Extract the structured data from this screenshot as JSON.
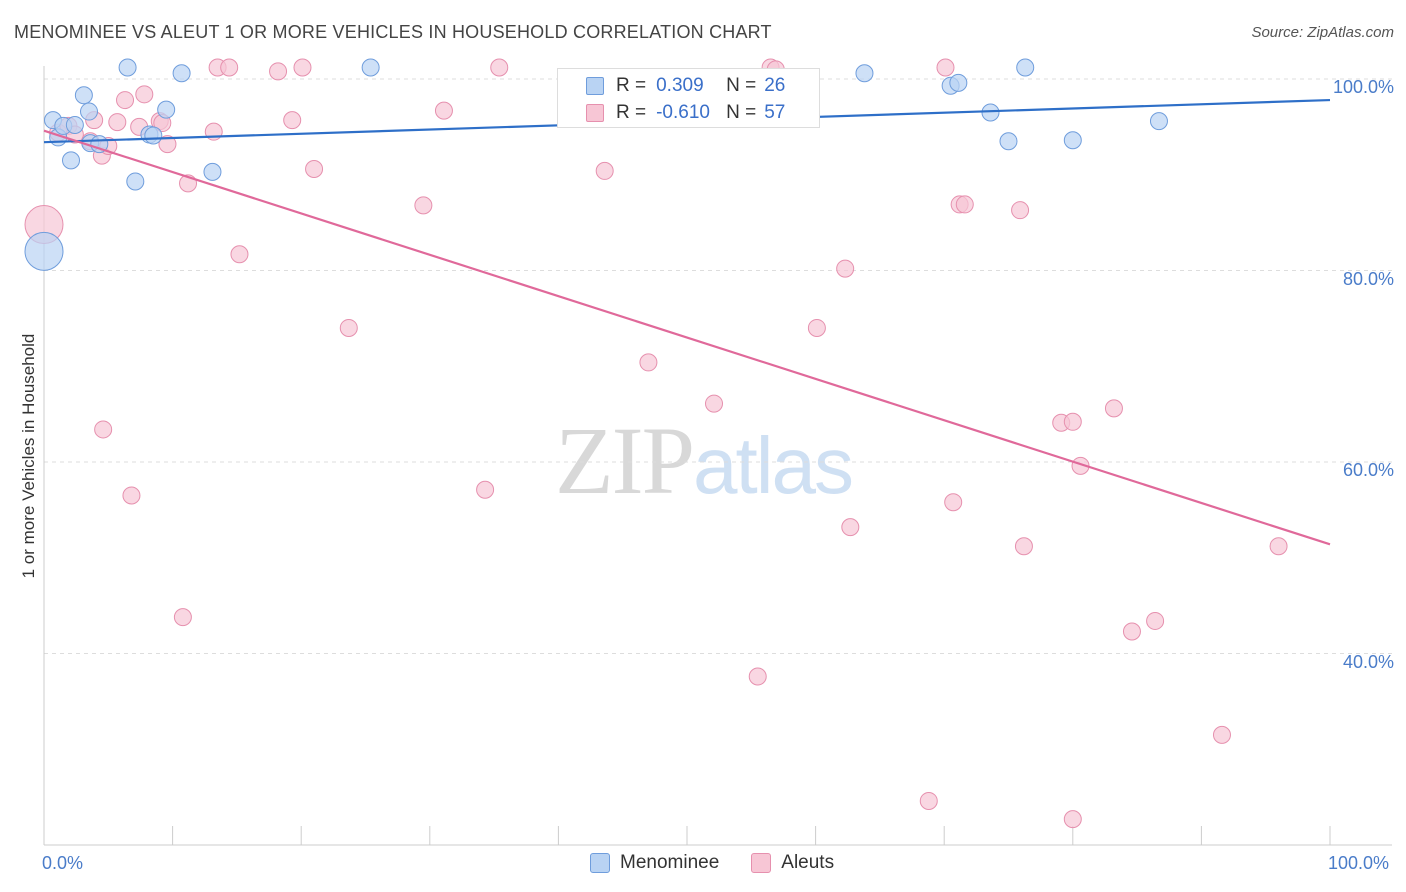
{
  "title": "MENOMINEE VS ALEUT 1 OR MORE VEHICLES IN HOUSEHOLD CORRELATION CHART",
  "source": "Source: ZipAtlas.com",
  "watermark": {
    "zip": "ZIP",
    "atlas": "atlas"
  },
  "colors": {
    "menominee_fill": "#b9d3f3",
    "menominee_stroke": "#6f9ddc",
    "menominee_line": "#2e6fc8",
    "aleut_fill": "#f7c6d5",
    "aleut_stroke": "#e690ae",
    "aleut_line": "#e0699a",
    "tick_label": "#4a7cc9",
    "grid": "#dddddd"
  },
  "legend_top": {
    "rows": [
      {
        "series": "Menominee",
        "r_label": "R =",
        "r_value": "0.309",
        "n_label": "N =",
        "n_value": "26"
      },
      {
        "series": "Aleuts",
        "r_label": "R =",
        "r_value": "-0.610",
        "n_label": "N =",
        "n_value": "57"
      }
    ]
  },
  "legend_bottom": [
    "Menominee",
    "Aleuts"
  ],
  "chart_data": {
    "type": "scatter",
    "title": "MENOMINEE VS ALEUT 1 OR MORE VEHICLES IN HOUSEHOLD CORRELATION CHART",
    "xlabel": "",
    "ylabel": "1 or more Vehicles in Household",
    "xlim": [
      0,
      100
    ],
    "ylim": [
      21,
      100
    ],
    "x_tick_labels": [
      {
        "value": 0,
        "label": "0.0%"
      },
      {
        "value": 100,
        "label": "100.0%"
      }
    ],
    "x_minor_ticks": [
      10,
      20,
      30,
      40,
      50,
      60,
      70,
      80,
      90,
      100
    ],
    "y_ticks": [
      {
        "value": 40,
        "label": "40.0%"
      },
      {
        "value": 60,
        "label": "60.0%"
      },
      {
        "value": 80,
        "label": "80.0%"
      },
      {
        "value": 100,
        "label": "100.0%"
      }
    ],
    "grid": "horizontal dashed",
    "legend_position": "top-center",
    "series": [
      {
        "name": "Menominee",
        "trend": {
          "x": [
            0,
            100
          ],
          "y": [
            93.4,
            97.8
          ]
        },
        "points": [
          {
            "x": 0.0,
            "y": 82.0,
            "big": true
          },
          {
            "x": 0.7,
            "y": 95.7
          },
          {
            "x": 1.1,
            "y": 93.9
          },
          {
            "x": 1.5,
            "y": 95.1
          },
          {
            "x": 2.1,
            "y": 91.5
          },
          {
            "x": 2.4,
            "y": 95.2
          },
          {
            "x": 3.1,
            "y": 98.3
          },
          {
            "x": 3.5,
            "y": 96.6
          },
          {
            "x": 3.6,
            "y": 93.3
          },
          {
            "x": 4.3,
            "y": 93.2
          },
          {
            "x": 7.1,
            "y": 89.3
          },
          {
            "x": 8.2,
            "y": 94.2
          },
          {
            "x": 8.5,
            "y": 94.1
          },
          {
            "x": 9.5,
            "y": 96.8
          },
          {
            "x": 10.7,
            "y": 100.6
          },
          {
            "x": 13.1,
            "y": 90.3
          },
          {
            "x": 6.5,
            "y": 101.2
          },
          {
            "x": 25.4,
            "y": 101.2
          },
          {
            "x": 63.8,
            "y": 100.6
          },
          {
            "x": 70.5,
            "y": 99.3
          },
          {
            "x": 71.1,
            "y": 99.6
          },
          {
            "x": 73.6,
            "y": 96.5
          },
          {
            "x": 75.0,
            "y": 93.5
          },
          {
            "x": 76.3,
            "y": 101.2
          },
          {
            "x": 80.0,
            "y": 93.6
          },
          {
            "x": 86.7,
            "y": 95.6
          }
        ]
      },
      {
        "name": "Aleuts",
        "trend": {
          "x": [
            0,
            100
          ],
          "y": [
            94.6,
            51.4
          ]
        },
        "points": [
          {
            "x": 0.0,
            "y": 84.8,
            "big": true
          },
          {
            "x": 1.1,
            "y": 94.4
          },
          {
            "x": 1.9,
            "y": 95.1
          },
          {
            "x": 2.4,
            "y": 94.2
          },
          {
            "x": 3.6,
            "y": 93.5
          },
          {
            "x": 3.9,
            "y": 95.7
          },
          {
            "x": 4.5,
            "y": 92.0
          },
          {
            "x": 4.6,
            "y": 63.4
          },
          {
            "x": 5.7,
            "y": 95.5
          },
          {
            "x": 6.3,
            "y": 97.8
          },
          {
            "x": 6.8,
            "y": 56.5
          },
          {
            "x": 7.4,
            "y": 95.0
          },
          {
            "x": 7.8,
            "y": 98.4
          },
          {
            "x": 9.0,
            "y": 95.6
          },
          {
            "x": 9.6,
            "y": 93.2
          },
          {
            "x": 10.8,
            "y": 43.8
          },
          {
            "x": 11.2,
            "y": 89.1
          },
          {
            "x": 13.2,
            "y": 94.5
          },
          {
            "x": 13.5,
            "y": 101.2
          },
          {
            "x": 14.4,
            "y": 101.2
          },
          {
            "x": 15.2,
            "y": 81.7
          },
          {
            "x": 18.2,
            "y": 100.8
          },
          {
            "x": 19.3,
            "y": 95.7
          },
          {
            "x": 20.1,
            "y": 101.2
          },
          {
            "x": 21.0,
            "y": 90.6
          },
          {
            "x": 23.7,
            "y": 74.0
          },
          {
            "x": 29.5,
            "y": 86.8
          },
          {
            "x": 31.1,
            "y": 96.7
          },
          {
            "x": 34.3,
            "y": 57.1
          },
          {
            "x": 35.4,
            "y": 101.2
          },
          {
            "x": 43.6,
            "y": 90.4
          },
          {
            "x": 47.0,
            "y": 70.4
          },
          {
            "x": 52.1,
            "y": 66.1
          },
          {
            "x": 55.5,
            "y": 37.6
          },
          {
            "x": 56.5,
            "y": 101.2
          },
          {
            "x": 56.9,
            "y": 101.0
          },
          {
            "x": 60.1,
            "y": 74.0
          },
          {
            "x": 62.3,
            "y": 80.2
          },
          {
            "x": 62.7,
            "y": 53.2
          },
          {
            "x": 68.8,
            "y": 24.6
          },
          {
            "x": 70.1,
            "y": 101.2
          },
          {
            "x": 70.7,
            "y": 55.8
          },
          {
            "x": 71.2,
            "y": 86.9
          },
          {
            "x": 71.6,
            "y": 86.9
          },
          {
            "x": 75.9,
            "y": 86.3
          },
          {
            "x": 76.2,
            "y": 51.2
          },
          {
            "x": 79.1,
            "y": 64.1
          },
          {
            "x": 80.0,
            "y": 64.2
          },
          {
            "x": 80.0,
            "y": 22.7
          },
          {
            "x": 80.6,
            "y": 59.6
          },
          {
            "x": 83.2,
            "y": 65.6
          },
          {
            "x": 84.6,
            "y": 42.3
          },
          {
            "x": 86.4,
            "y": 43.4
          },
          {
            "x": 91.6,
            "y": 31.5
          },
          {
            "x": 96.0,
            "y": 51.2
          },
          {
            "x": 5.0,
            "y": 93.0
          },
          {
            "x": 9.2,
            "y": 95.4
          }
        ]
      }
    ]
  }
}
